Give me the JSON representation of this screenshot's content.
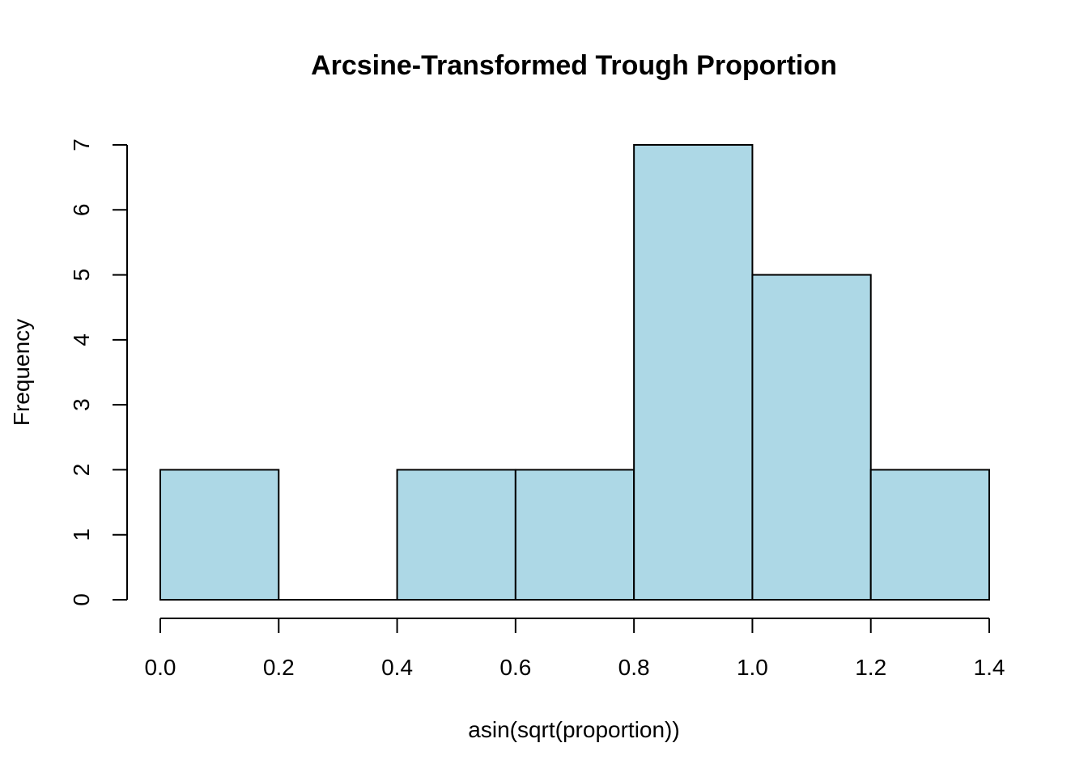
{
  "chart_data": {
    "type": "bar",
    "subtype": "histogram",
    "title": "Arcsine-Transformed Trough Proportion",
    "xlabel": "asin(sqrt(proportion))",
    "ylabel": "Frequency",
    "bins": [
      {
        "start": 0.0,
        "end": 0.2,
        "count": 2
      },
      {
        "start": 0.2,
        "end": 0.4,
        "count": 0
      },
      {
        "start": 0.4,
        "end": 0.6,
        "count": 2
      },
      {
        "start": 0.6,
        "end": 0.8,
        "count": 2
      },
      {
        "start": 0.8,
        "end": 1.0,
        "count": 7
      },
      {
        "start": 1.0,
        "end": 1.2,
        "count": 5
      },
      {
        "start": 1.2,
        "end": 1.4,
        "count": 2
      }
    ],
    "xlim": [
      0.0,
      1.4
    ],
    "ylim": [
      0,
      7
    ],
    "x_ticks": [
      "0.0",
      "0.2",
      "0.4",
      "0.6",
      "0.8",
      "1.0",
      "1.2",
      "1.4"
    ],
    "y_ticks": [
      "0",
      "1",
      "2",
      "3",
      "4",
      "5",
      "6",
      "7"
    ],
    "bar_color": "#ADD8E6",
    "grid": false,
    "legend": "none"
  }
}
